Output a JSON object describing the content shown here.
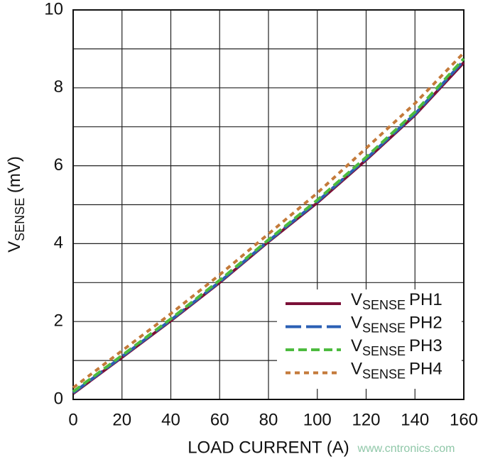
{
  "chart_data": {
    "type": "line",
    "xlabel": "LOAD CURRENT (A)",
    "ylabel": {
      "main": "V",
      "sub": "SENSE",
      "rest": " (mV)"
    },
    "x": [
      0,
      20,
      40,
      60,
      80,
      100,
      120,
      140,
      160
    ],
    "series": [
      {
        "prefix": "V",
        "subscript": "SENSE",
        "name": "PH1",
        "color": "#7b1038",
        "dash": "none",
        "values": [
          0.15,
          1.08,
          2.02,
          3.0,
          4.05,
          5.05,
          6.15,
          7.3,
          8.65
        ]
      },
      {
        "prefix": "V",
        "subscript": "SENSE",
        "name": "PH2",
        "color": "#2b5fb4",
        "dash": "22 7",
        "values": [
          0.17,
          1.1,
          2.04,
          3.02,
          4.07,
          5.08,
          6.18,
          7.33,
          8.7
        ]
      },
      {
        "prefix": "V",
        "subscript": "SENSE",
        "name": "PH3",
        "color": "#4dbb3f",
        "dash": "12 6",
        "values": [
          0.2,
          1.13,
          2.07,
          3.06,
          4.1,
          5.12,
          6.22,
          7.38,
          8.75
        ]
      },
      {
        "prefix": "V",
        "subscript": "SENSE",
        "name": "PH4",
        "color": "#c47a3a",
        "dash": "7 6",
        "values": [
          0.3,
          1.25,
          2.2,
          3.2,
          4.25,
          5.3,
          6.45,
          7.6,
          8.9
        ]
      }
    ],
    "xlim": [
      0,
      160
    ],
    "xticks": [
      0,
      20,
      40,
      60,
      80,
      100,
      120,
      140,
      160
    ],
    "ylim": [
      0,
      10
    ],
    "yticks": [
      0,
      2,
      4,
      6,
      8,
      10
    ],
    "y_minor_gridlines": [
      1,
      3,
      5,
      7,
      9
    ],
    "grid": true,
    "legend": "lower right",
    "watermark": "www.cntronics.com"
  }
}
